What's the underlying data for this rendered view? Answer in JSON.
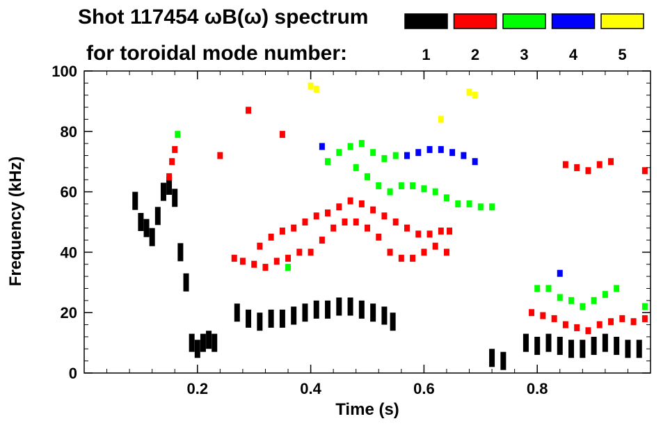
{
  "chart_data": {
    "type": "scatter",
    "title_line1": "Shot 117454 ωB(ω) spectrum",
    "title_line2": "for toroidal mode number:",
    "xlabel": "Time (s)",
    "ylabel": "Frequency (kHz)",
    "xlim": [
      0.0,
      1.0
    ],
    "ylim": [
      0,
      100
    ],
    "x_ticks": [
      0.2,
      0.4,
      0.6,
      0.8
    ],
    "x_tick_labels": [
      "0.2",
      "0.4",
      "0.6",
      "0.8"
    ],
    "y_ticks": [
      0,
      20,
      40,
      60,
      80,
      100
    ],
    "y_tick_labels": [
      "0",
      "20",
      "40",
      "60",
      "80",
      "100"
    ],
    "grid": false,
    "legend_position": "top-right",
    "series": [
      {
        "name": "1",
        "color": "#000000",
        "points": [
          [
            0.09,
            57
          ],
          [
            0.1,
            50
          ],
          [
            0.11,
            48
          ],
          [
            0.12,
            45
          ],
          [
            0.13,
            52
          ],
          [
            0.14,
            60
          ],
          [
            0.15,
            62
          ],
          [
            0.16,
            58
          ],
          [
            0.17,
            40
          ],
          [
            0.18,
            30
          ],
          [
            0.19,
            10
          ],
          [
            0.2,
            8
          ],
          [
            0.21,
            10
          ],
          [
            0.22,
            11
          ],
          [
            0.23,
            10
          ],
          [
            0.27,
            20
          ],
          [
            0.29,
            18
          ],
          [
            0.31,
            17
          ],
          [
            0.33,
            18
          ],
          [
            0.35,
            18
          ],
          [
            0.37,
            19
          ],
          [
            0.39,
            20
          ],
          [
            0.41,
            21
          ],
          [
            0.43,
            21
          ],
          [
            0.45,
            22
          ],
          [
            0.47,
            22
          ],
          [
            0.49,
            21
          ],
          [
            0.51,
            20
          ],
          [
            0.53,
            19
          ],
          [
            0.545,
            17
          ],
          [
            0.72,
            5
          ],
          [
            0.74,
            4
          ],
          [
            0.78,
            10
          ],
          [
            0.8,
            9
          ],
          [
            0.82,
            10
          ],
          [
            0.84,
            9
          ],
          [
            0.86,
            8
          ],
          [
            0.88,
            8
          ],
          [
            0.9,
            9
          ],
          [
            0.92,
            10
          ],
          [
            0.94,
            9
          ],
          [
            0.96,
            8
          ],
          [
            0.98,
            8
          ]
        ]
      },
      {
        "name": "2",
        "color": "#ff0000",
        "points": [
          [
            0.15,
            65
          ],
          [
            0.155,
            70
          ],
          [
            0.16,
            74
          ],
          [
            0.24,
            72
          ],
          [
            0.265,
            38
          ],
          [
            0.28,
            37
          ],
          [
            0.3,
            36
          ],
          [
            0.32,
            35
          ],
          [
            0.34,
            37
          ],
          [
            0.36,
            38
          ],
          [
            0.38,
            40
          ],
          [
            0.4,
            40
          ],
          [
            0.42,
            44
          ],
          [
            0.44,
            48
          ],
          [
            0.46,
            50
          ],
          [
            0.48,
            50
          ],
          [
            0.5,
            48
          ],
          [
            0.52,
            45
          ],
          [
            0.54,
            40
          ],
          [
            0.56,
            38
          ],
          [
            0.58,
            38
          ],
          [
            0.6,
            40
          ],
          [
            0.62,
            42
          ],
          [
            0.64,
            40
          ],
          [
            0.31,
            42
          ],
          [
            0.33,
            45
          ],
          [
            0.35,
            47
          ],
          [
            0.37,
            48
          ],
          [
            0.39,
            50
          ],
          [
            0.41,
            52
          ],
          [
            0.43,
            53
          ],
          [
            0.45,
            55
          ],
          [
            0.47,
            57
          ],
          [
            0.49,
            56
          ],
          [
            0.51,
            54
          ],
          [
            0.53,
            52
          ],
          [
            0.55,
            50
          ],
          [
            0.57,
            48
          ],
          [
            0.59,
            46
          ],
          [
            0.61,
            46
          ],
          [
            0.63,
            47
          ],
          [
            0.645,
            47
          ],
          [
            0.79,
            20
          ],
          [
            0.81,
            19
          ],
          [
            0.83,
            18
          ],
          [
            0.85,
            16
          ],
          [
            0.87,
            15
          ],
          [
            0.89,
            14
          ],
          [
            0.91,
            16
          ],
          [
            0.93,
            17
          ],
          [
            0.95,
            18
          ],
          [
            0.97,
            17
          ],
          [
            0.99,
            18
          ],
          [
            0.85,
            69
          ],
          [
            0.87,
            68
          ],
          [
            0.89,
            67
          ],
          [
            0.91,
            69
          ],
          [
            0.93,
            70
          ],
          [
            0.99,
            67
          ],
          [
            0.29,
            87
          ],
          [
            0.35,
            79
          ]
        ]
      },
      {
        "name": "3",
        "color": "#00ff00",
        "points": [
          [
            0.165,
            79
          ],
          [
            0.36,
            35
          ],
          [
            0.43,
            70
          ],
          [
            0.45,
            73
          ],
          [
            0.47,
            75
          ],
          [
            0.49,
            76
          ],
          [
            0.51,
            73
          ],
          [
            0.53,
            71
          ],
          [
            0.55,
            72
          ],
          [
            0.48,
            68
          ],
          [
            0.5,
            65
          ],
          [
            0.52,
            62
          ],
          [
            0.54,
            60
          ],
          [
            0.56,
            62
          ],
          [
            0.58,
            62
          ],
          [
            0.6,
            61
          ],
          [
            0.62,
            60
          ],
          [
            0.64,
            58
          ],
          [
            0.66,
            56
          ],
          [
            0.68,
            56
          ],
          [
            0.7,
            55
          ],
          [
            0.72,
            55
          ],
          [
            0.8,
            28
          ],
          [
            0.82,
            28
          ],
          [
            0.84,
            25
          ],
          [
            0.86,
            24
          ],
          [
            0.88,
            22
          ],
          [
            0.9,
            24
          ],
          [
            0.92,
            26
          ],
          [
            0.94,
            28
          ],
          [
            0.99,
            22
          ]
        ]
      },
      {
        "name": "4",
        "color": "#0000ff",
        "points": [
          [
            0.42,
            75
          ],
          [
            0.57,
            72
          ],
          [
            0.59,
            73
          ],
          [
            0.61,
            74
          ],
          [
            0.63,
            74
          ],
          [
            0.65,
            73
          ],
          [
            0.67,
            72
          ],
          [
            0.69,
            70
          ],
          [
            0.84,
            33
          ]
        ]
      },
      {
        "name": "5",
        "color": "#ffff00",
        "points": [
          [
            0.4,
            95
          ],
          [
            0.41,
            94
          ],
          [
            0.63,
            84
          ],
          [
            0.68,
            93
          ],
          [
            0.69,
            92
          ]
        ]
      }
    ]
  }
}
